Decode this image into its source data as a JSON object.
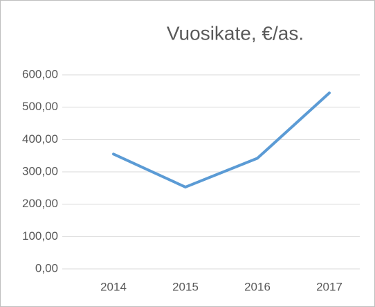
{
  "chart_data": {
    "type": "line",
    "title": "Vuosikate, €/as.",
    "categories": [
      "2014",
      "2015",
      "2016",
      "2017"
    ],
    "series": [
      {
        "name": "Vuosikate",
        "color": "#5b9bd5",
        "values": [
          355,
          253,
          342,
          544
        ]
      }
    ],
    "ylim": [
      0,
      600
    ],
    "yticks": [
      {
        "value": 0,
        "label": "0,00"
      },
      {
        "value": 100,
        "label": "100,00"
      },
      {
        "value": 200,
        "label": "200,00"
      },
      {
        "value": 300,
        "label": "300,00"
      },
      {
        "value": 400,
        "label": "400,00"
      },
      {
        "value": 500,
        "label": "500,00"
      },
      {
        "value": 600,
        "label": "600,00"
      }
    ],
    "grid": true
  }
}
